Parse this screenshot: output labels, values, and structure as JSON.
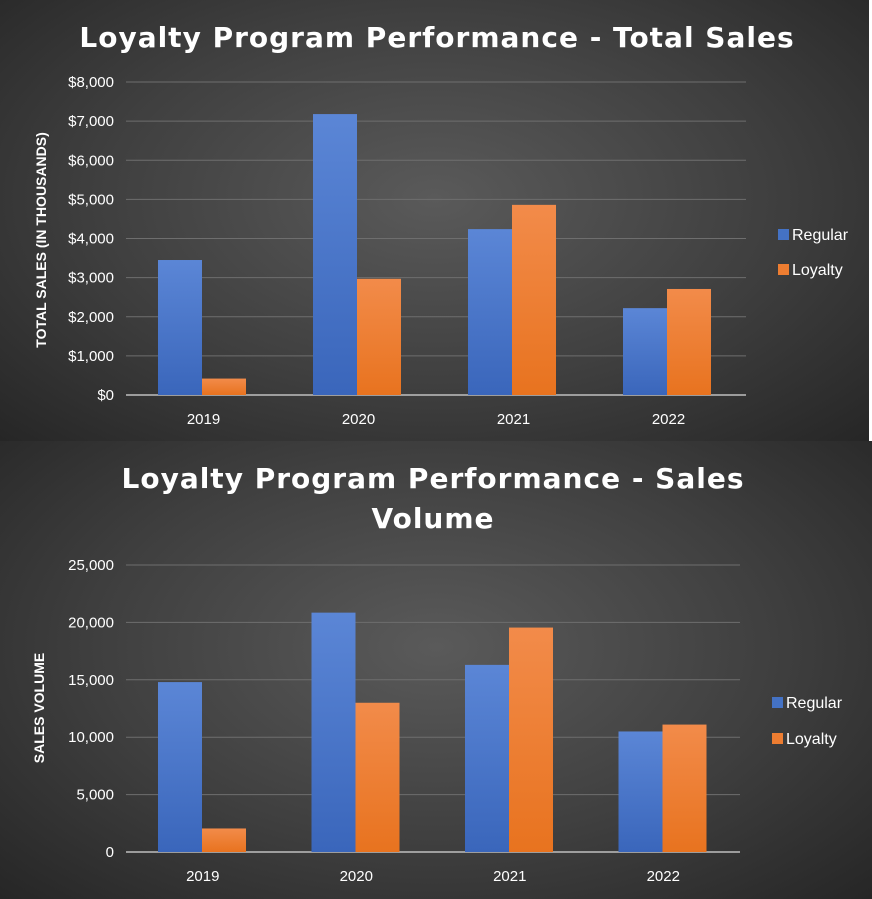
{
  "colors": {
    "regular": "#4472c4",
    "loyalty": "#ed7d31",
    "grid": "#6e6e6e",
    "axis": "#bfbfbf",
    "text": "#ffffff"
  },
  "chart_data": [
    {
      "type": "bar",
      "title": "Loyalty Program Performance - Total Sales",
      "ylabel": "TOTAL SALES (IN THOUSANDS)",
      "xlabel": "",
      "categories": [
        "2019",
        "2020",
        "2021",
        "2022"
      ],
      "series": [
        {
          "name": "Regular",
          "values": [
            3450,
            7180,
            4240,
            2220
          ]
        },
        {
          "name": "Loyalty",
          "values": [
            420,
            2970,
            4860,
            2710
          ]
        }
      ],
      "ylim": [
        0,
        8000
      ],
      "yticks": [
        "$0",
        "$1,000",
        "$2,000",
        "$3,000",
        "$4,000",
        "$5,000",
        "$6,000",
        "$7,000",
        "$8,000"
      ],
      "grid": true,
      "legend": "right"
    },
    {
      "type": "bar",
      "title": "Loyalty Program Performance - Sales Volume",
      "ylabel": "SALES VOLUME",
      "xlabel": "",
      "categories": [
        "2019",
        "2020",
        "2021",
        "2022"
      ],
      "series": [
        {
          "name": "Regular",
          "values": [
            14800,
            20850,
            16300,
            10500
          ]
        },
        {
          "name": "Loyalty",
          "values": [
            2050,
            13000,
            19550,
            11100
          ]
        }
      ],
      "ylim": [
        0,
        25000
      ],
      "yticks": [
        "0",
        "5,000",
        "10,000",
        "15,000",
        "20,000",
        "25,000"
      ],
      "grid": true,
      "legend": "right"
    }
  ]
}
